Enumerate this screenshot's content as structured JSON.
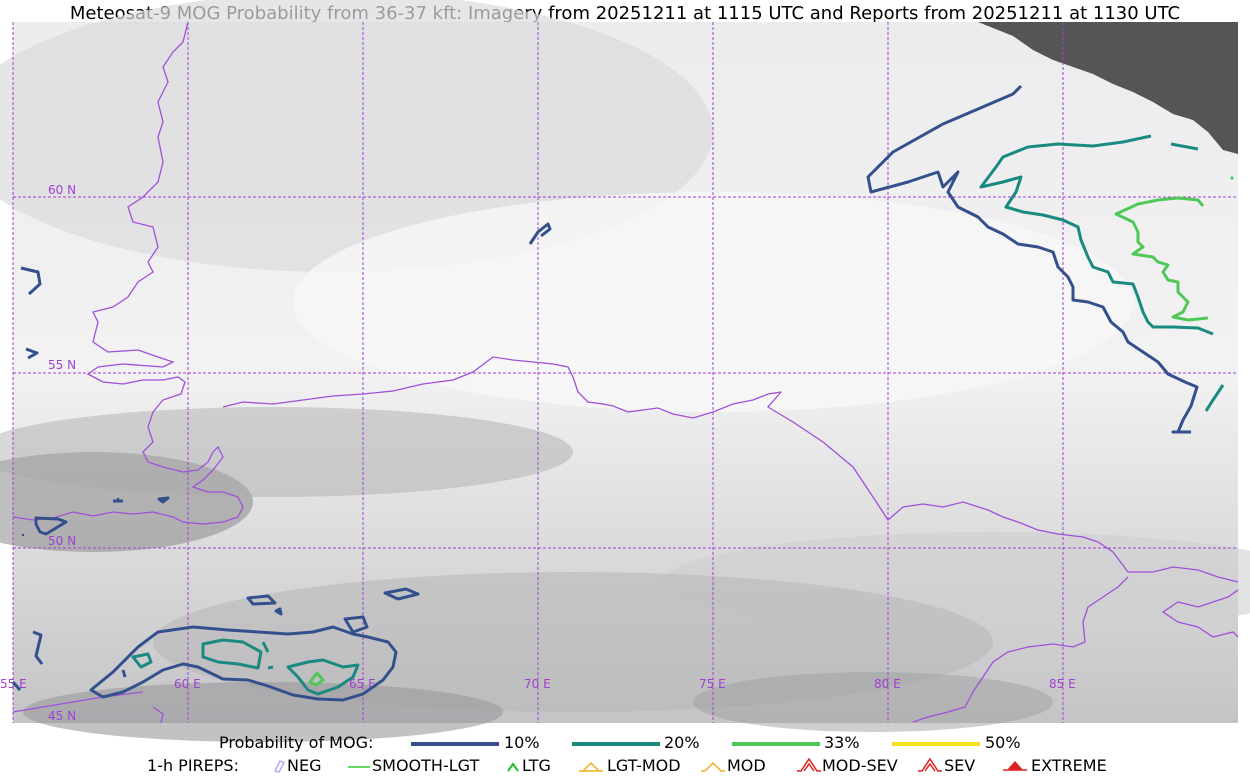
{
  "title": "Meteosat-9 MOG Probability from 36-37 kft: Imagery from 20251211 at 1115 UTC and Reports from 20251211 at 1130 UTC",
  "map": {
    "lat_labels": [
      "60 N",
      "55 N",
      "50 N",
      "45 N"
    ],
    "lon_labels": [
      "55 E",
      "60 E",
      "65 E",
      "70 E",
      "75 E",
      "80 E",
      "85 E"
    ],
    "colors": {
      "gridline": "#a040d0",
      "border": "#a050d8",
      "contour_10": "#34508c",
      "contour_20": "#1a8a80",
      "contour_33": "#50c858",
      "contour_50": "#f5e11e",
      "no_data": "#555555"
    }
  },
  "legend": {
    "prob_label": "Probability of MOG:",
    "prob_items": [
      {
        "label": "10%",
        "color": "#34508c"
      },
      {
        "label": "20%",
        "color": "#1a8a80"
      },
      {
        "label": "33%",
        "color": "#50c858"
      },
      {
        "label": "50%",
        "color": "#f5e11e"
      }
    ],
    "pirep_label": "1-h PIREPS:",
    "pirep_items": [
      {
        "label": "NEG",
        "icon": "neg-icon",
        "color": "#b0b0f0"
      },
      {
        "label": "SMOOTH-LGT",
        "icon": "smooth-lgt-icon",
        "color": "#30d030"
      },
      {
        "label": "LTG",
        "icon": "ltg-icon",
        "color": "#20c020"
      },
      {
        "label": "LGT-MOD",
        "icon": "lgt-mod-icon",
        "color": "#f0b020"
      },
      {
        "label": "MOD",
        "icon": "mod-icon",
        "color": "#f0b020"
      },
      {
        "label": "MOD-SEV",
        "icon": "mod-sev-icon",
        "color": "#e02020"
      },
      {
        "label": "SEV",
        "icon": "sev-icon",
        "color": "#e02020"
      },
      {
        "label": "EXTREME",
        "icon": "extreme-icon",
        "color": "#e02020"
      }
    ]
  }
}
